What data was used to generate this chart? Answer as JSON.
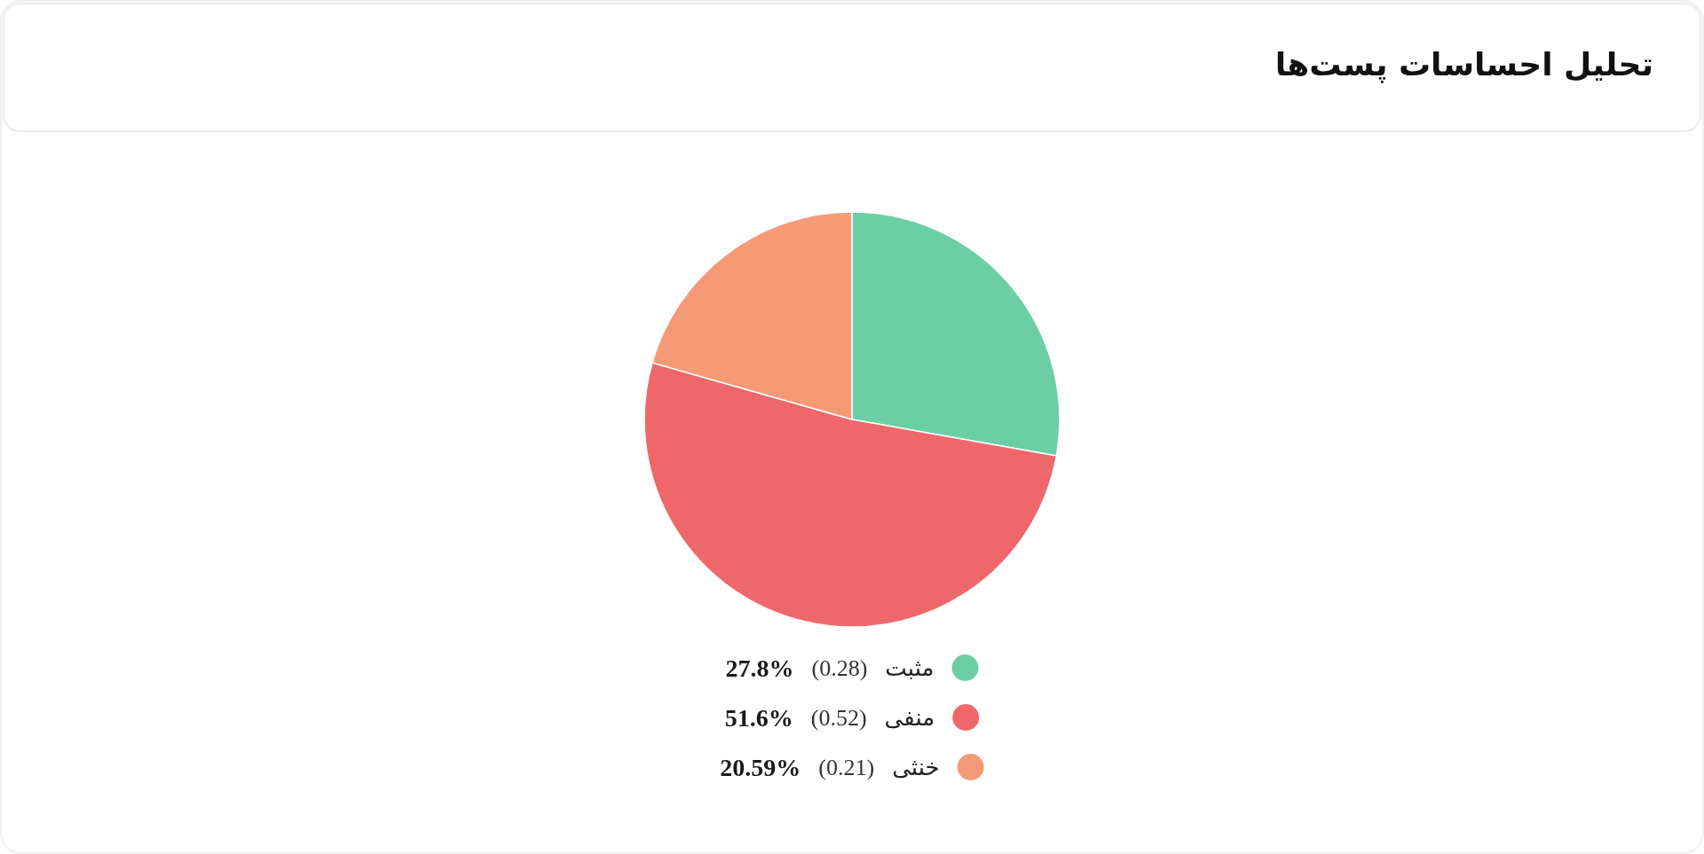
{
  "chart_data": {
    "type": "pie",
    "title": "تحلیل احساسات پست‌ها",
    "categories": [
      "مثبت",
      "منفی",
      "خنثی"
    ],
    "values": [
      27.8,
      51.6,
      20.59
    ],
    "colors": [
      "#6ccea6",
      "#ee686b",
      "#f59a77"
    ],
    "value_labels": [
      "27.8% (0.28)",
      "51.6% (0.52)",
      "20.59% (0.21)"
    ],
    "legend": "bottom"
  }
}
